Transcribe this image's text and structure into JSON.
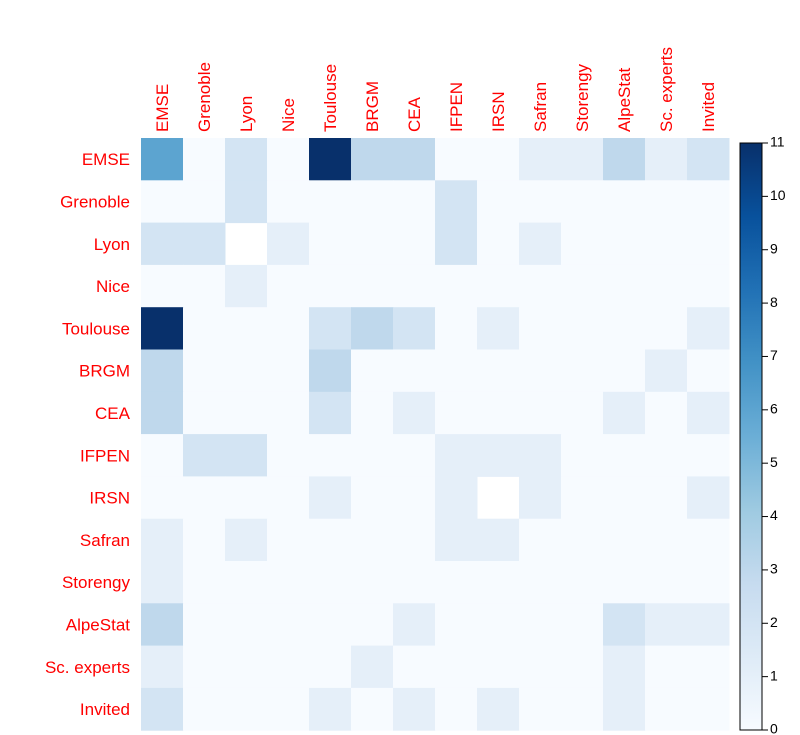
{
  "chart_data": {
    "type": "heatmap",
    "x": [
      "EMSE",
      "Grenoble",
      "Lyon",
      "Nice",
      "Toulouse",
      "BRGM",
      "CEA",
      "IFPEN",
      "IRSN",
      "Safran",
      "Storengy",
      "AlpeStat",
      "Sc. experts",
      "Invited"
    ],
    "y": [
      "EMSE",
      "Grenoble",
      "Lyon",
      "Nice",
      "Toulouse",
      "BRGM",
      "CEA",
      "IFPEN",
      "IRSN",
      "Safran",
      "Storengy",
      "AlpeStat",
      "Sc. experts",
      "Invited"
    ],
    "values": [
      [
        6,
        0,
        2,
        0,
        11,
        3,
        3,
        0,
        0,
        1,
        1,
        3,
        1,
        2
      ],
      [
        0,
        0,
        2,
        0,
        0,
        0,
        0,
        2,
        0,
        0,
        0,
        0,
        0,
        0
      ],
      [
        2,
        2,
        null,
        1,
        0,
        0,
        0,
        2,
        0,
        1,
        0,
        0,
        0,
        0
      ],
      [
        0,
        0,
        1,
        0,
        0,
        0,
        0,
        0,
        0,
        0,
        0,
        0,
        0,
        0
      ],
      [
        11,
        0,
        0,
        0,
        2,
        3,
        2,
        0,
        1,
        0,
        0,
        0,
        0,
        1
      ],
      [
        3,
        0,
        0,
        0,
        3,
        0,
        0,
        0,
        0,
        0,
        0,
        0,
        1,
        0
      ],
      [
        3,
        0,
        0,
        0,
        2,
        0,
        1,
        0,
        0,
        0,
        0,
        1,
        0,
        1
      ],
      [
        0,
        2,
        2,
        0,
        0,
        0,
        0,
        1,
        1,
        1,
        0,
        0,
        0,
        0
      ],
      [
        0,
        0,
        0,
        0,
        1,
        0,
        0,
        1,
        null,
        1,
        0,
        0,
        0,
        1
      ],
      [
        1,
        0,
        1,
        0,
        0,
        0,
        0,
        1,
        1,
        0,
        0,
        0,
        0,
        0
      ],
      [
        1,
        0,
        0,
        0,
        0,
        0,
        0,
        0,
        0,
        0,
        0,
        0,
        0,
        0
      ],
      [
        3,
        0,
        0,
        0,
        0,
        0,
        1,
        0,
        0,
        0,
        0,
        2,
        1,
        1
      ],
      [
        1,
        0,
        0,
        0,
        0,
        1,
        0,
        0,
        0,
        0,
        0,
        1,
        0,
        0
      ],
      [
        2,
        0,
        0,
        0,
        1,
        0,
        1,
        0,
        1,
        0,
        0,
        1,
        0,
        0
      ]
    ],
    "colors": [
      "#f7fbff",
      "#deebf7",
      "#c6dbef",
      "#9ecae1",
      "#6baed6",
      "#4292c6",
      "#2171b5",
      "#08519c",
      "#08306b"
    ],
    "zlim": [
      0,
      11
    ],
    "zticks": [
      0,
      1,
      2,
      3,
      4,
      5,
      6,
      7,
      8,
      9,
      10,
      11
    ]
  }
}
